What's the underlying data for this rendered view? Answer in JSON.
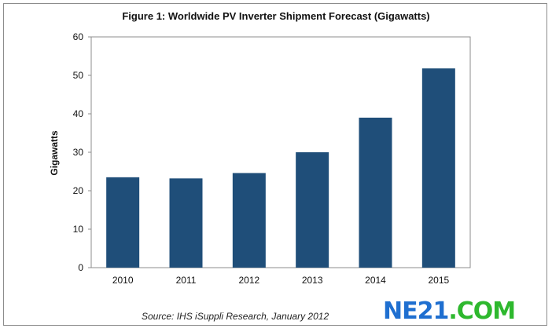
{
  "chart_data": {
    "type": "bar",
    "title": "Figure 1: Worldwide PV Inverter Shipment Forecast (Gigawatts)",
    "xlabel": "",
    "ylabel": "Gigawatts",
    "categories": [
      "2010",
      "2011",
      "2012",
      "2013",
      "2014",
      "2015"
    ],
    "values": [
      23.5,
      23.2,
      24.6,
      30.0,
      39.0,
      51.8
    ],
    "ylim": [
      0,
      60
    ],
    "yticks": [
      0,
      10,
      20,
      30,
      40,
      50,
      60
    ],
    "grid": false,
    "bar_color": "#1f4e79"
  },
  "source": "Source: IHS iSuppli Research, January 2012",
  "watermark": {
    "part_a": "NE21",
    "part_b": ".COM",
    "color_a": "#1f6fd0",
    "color_b": "#2eb82e"
  }
}
